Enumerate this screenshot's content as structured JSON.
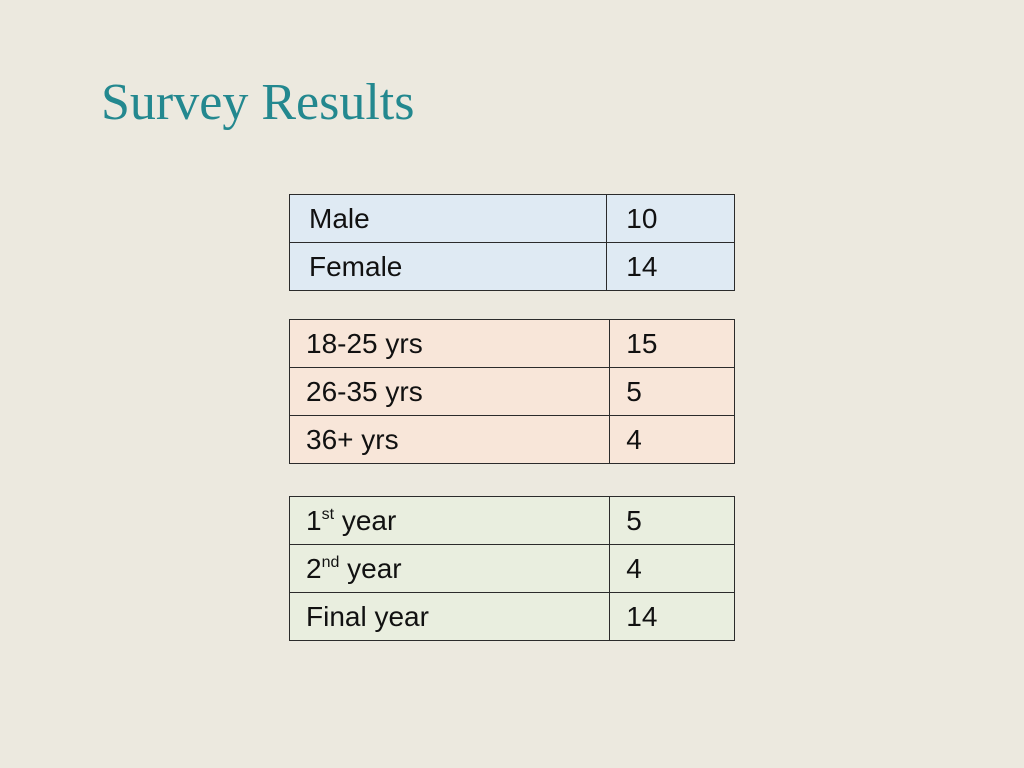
{
  "slide": {
    "title": "Survey Results"
  },
  "tables": {
    "gender": {
      "fill_color": "#dfeaf3",
      "rows": [
        {
          "label": "Male",
          "value": "10"
        },
        {
          "label": "Female",
          "value": "14"
        }
      ]
    },
    "age": {
      "fill_color": "#f8e6d9",
      "rows": [
        {
          "label": "18-25 yrs",
          "value": "15"
        },
        {
          "label": "26-35 yrs",
          "value": "5"
        },
        {
          "label": "36+ yrs",
          "value": "4"
        }
      ]
    },
    "year": {
      "fill_color": "#e9eedf",
      "rows": [
        {
          "number": "1",
          "suffix": "st",
          "label": "year",
          "value": "5"
        },
        {
          "number": "2",
          "suffix": "nd",
          "label": "year",
          "value": "4"
        },
        {
          "label": "Final year",
          "value": "14"
        }
      ]
    }
  },
  "colors": {
    "background": "#ece9df",
    "title": "#23888f",
    "border": "#2b2b2b"
  }
}
